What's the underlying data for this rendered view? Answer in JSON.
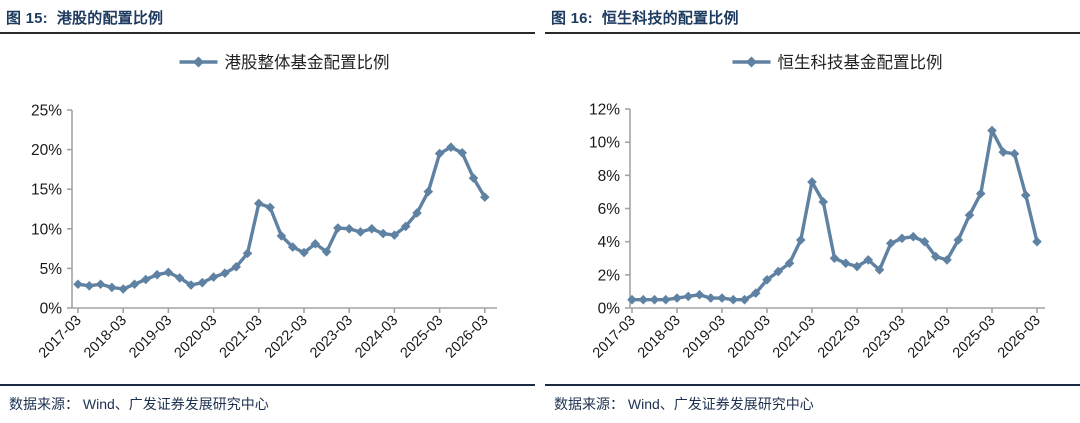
{
  "panels": [
    {
      "title_num": "图 15:",
      "title_text": "港股的配置比例",
      "source_text": "数据来源： Wind、广发证券发展研究中心"
    },
    {
      "title_num": "图 16:",
      "title_text": "恒生科技的配置比例",
      "source_text": "数据来源： Wind、广发证券发展研究中心"
    }
  ],
  "chart_data": [
    {
      "type": "line",
      "title": "港股的配置比例",
      "legend": "港股整体基金配置比例",
      "line_color": "#5f82a2",
      "axis_color": "#a3a3a3",
      "label_color": "#1a1a1a",
      "x_tick_labels": [
        "2017-03",
        "2018-03",
        "2019-03",
        "2020-03",
        "2021-03",
        "2022-03",
        "2023-03",
        "2024-03",
        "2025-03",
        "2026-03"
      ],
      "points_per_year": 4,
      "x_start": "2017-03",
      "x_end": "2026-03",
      "ylim": [
        0,
        25
      ],
      "ytick_step": 5,
      "ytick_labels": [
        "0%",
        "5%",
        "10%",
        "15%",
        "20%",
        "25%"
      ],
      "values": [
        3.0,
        2.8,
        3.0,
        2.6,
        2.4,
        3.0,
        3.6,
        4.2,
        4.5,
        3.8,
        2.9,
        3.2,
        3.9,
        4.4,
        5.2,
        6.9,
        13.2,
        12.7,
        9.1,
        7.7,
        7.0,
        8.1,
        7.1,
        10.1,
        10.0,
        9.6,
        10.0,
        9.4,
        9.2,
        10.3,
        12.0,
        14.7,
        19.5,
        20.3,
        19.6,
        16.4,
        14.0
      ]
    },
    {
      "type": "line",
      "title": "恒生科技的配置比例",
      "legend": "恒生科技基金配置比例",
      "line_color": "#5f82a2",
      "axis_color": "#a3a3a3",
      "label_color": "#1a1a1a",
      "x_tick_labels": [
        "2017-03",
        "2018-03",
        "2019-03",
        "2020-03",
        "2021-03",
        "2022-03",
        "2023-03",
        "2024-03",
        "2025-03",
        "2026-03"
      ],
      "points_per_year": 4,
      "x_start": "2017-03",
      "x_end": "2026-03",
      "ylim": [
        0,
        12
      ],
      "ytick_step": 2,
      "ytick_labels": [
        "0%",
        "2%",
        "4%",
        "6%",
        "8%",
        "10%",
        "12%"
      ],
      "values": [
        0.5,
        0.5,
        0.5,
        0.5,
        0.6,
        0.7,
        0.8,
        0.6,
        0.6,
        0.5,
        0.5,
        0.9,
        1.7,
        2.2,
        2.7,
        4.1,
        7.6,
        6.4,
        3.0,
        2.7,
        2.5,
        2.9,
        2.3,
        3.9,
        4.2,
        4.3,
        4.0,
        3.1,
        2.9,
        4.1,
        5.6,
        6.9,
        10.7,
        9.4,
        9.3,
        6.8,
        4.0
      ]
    }
  ]
}
